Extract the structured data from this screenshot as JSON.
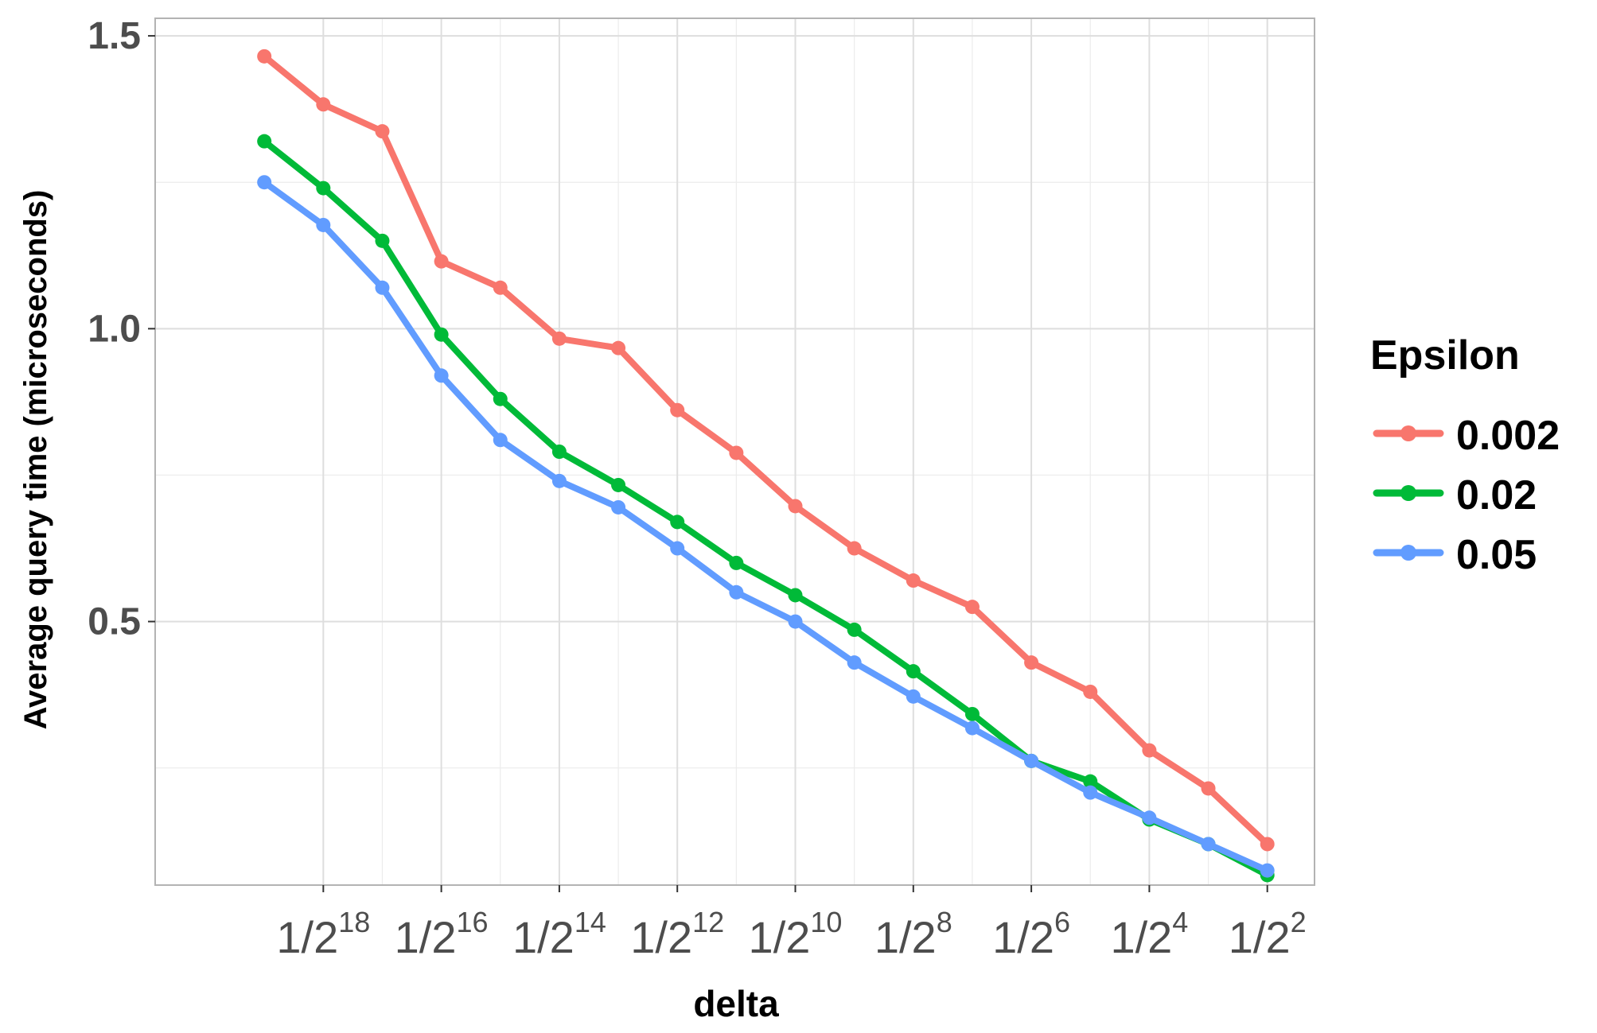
{
  "chart_data": {
    "type": "line",
    "xlabel": "delta",
    "ylabel": "Average query time (microseconds)",
    "x": [
      -19,
      -18,
      -17,
      -16,
      -15,
      -14,
      -13,
      -12,
      -11,
      -10,
      -9,
      -8,
      -7,
      -6,
      -5,
      -4,
      -3,
      -2
    ],
    "x_tick_values": [
      -18,
      -16,
      -14,
      -12,
      -10,
      -8,
      -6,
      -4,
      -2
    ],
    "x_tick_base": "1/2",
    "x_tick_exponents": [
      "18",
      "16",
      "14",
      "12",
      "10",
      "8",
      "6",
      "4",
      "2"
    ],
    "xlim": [
      -20.85,
      -1.2
    ],
    "y_ticks": [
      0.5,
      1.0,
      1.5
    ],
    "y_tick_labels": [
      "0.5",
      "1.0",
      "1.5"
    ],
    "ylim": [
      0.05,
      1.53
    ],
    "grid": true,
    "legend": {
      "title": "Epsilon",
      "position": "right"
    },
    "series": [
      {
        "name": "0.002",
        "color": "#F8766D",
        "values": [
          1.465,
          1.383,
          1.337,
          1.115,
          1.07,
          0.983,
          0.967,
          0.861,
          0.788,
          0.697,
          0.625,
          0.57,
          0.525,
          0.43,
          0.38,
          0.28,
          0.215,
          0.12
        ]
      },
      {
        "name": "0.02",
        "color": "#00BA38",
        "values": [
          1.32,
          1.24,
          1.15,
          0.99,
          0.88,
          0.79,
          0.733,
          0.67,
          0.6,
          0.545,
          0.486,
          0.415,
          0.342,
          0.262,
          0.227,
          0.162,
          0.12,
          0.067
        ]
      },
      {
        "name": "0.05",
        "color": "#619CFF",
        "values": [
          1.25,
          1.177,
          1.07,
          0.92,
          0.81,
          0.74,
          0.695,
          0.625,
          0.55,
          0.5,
          0.43,
          0.372,
          0.318,
          0.262,
          0.208,
          0.165,
          0.12,
          0.075
        ]
      }
    ]
  }
}
